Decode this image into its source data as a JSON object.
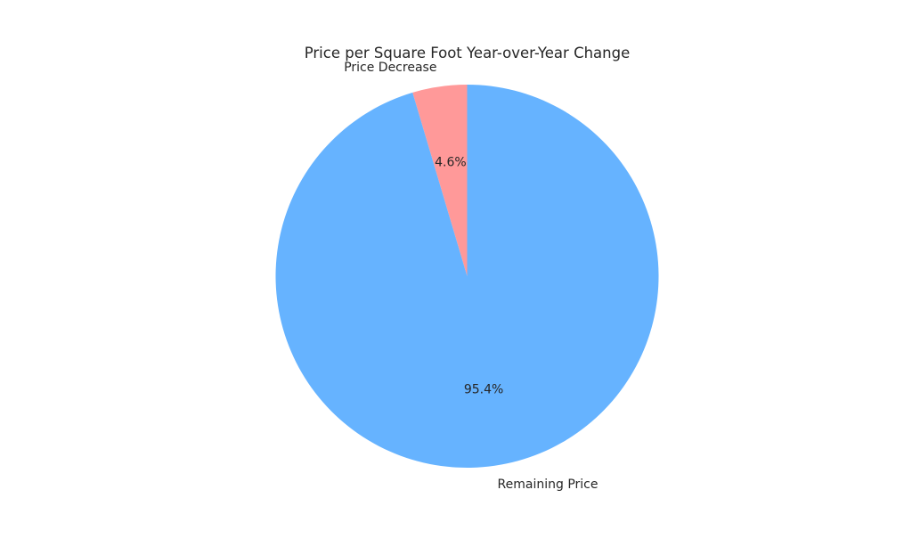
{
  "chart_data": {
    "type": "pie",
    "title": "Price per Square Foot Year-over-Year Change",
    "slices": [
      {
        "label": "Price Decrease",
        "value": 4.6,
        "pct_label": "4.6%",
        "color": "#ff9999"
      },
      {
        "label": "Remaining Price",
        "value": 95.4,
        "pct_label": "95.4%",
        "color": "#66b3ff"
      }
    ],
    "start_angle": 90,
    "direction": "counterclockwise"
  }
}
